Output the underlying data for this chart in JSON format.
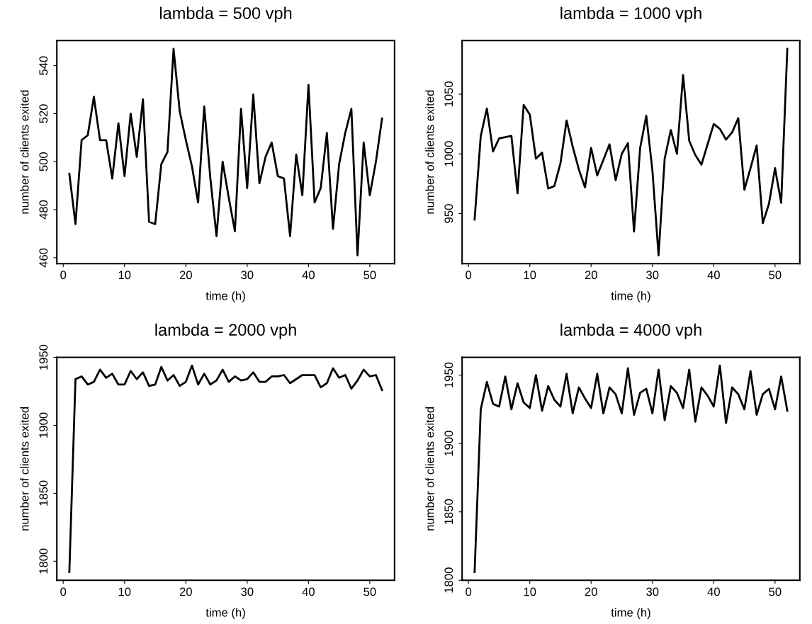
{
  "chart_data": [
    {
      "type": "line",
      "title": "lambda = 500 vph",
      "xlabel": "time (h)",
      "ylabel": "number of clients exited",
      "x": [
        1,
        2,
        3,
        4,
        5,
        6,
        7,
        8,
        9,
        10,
        11,
        12,
        13,
        14,
        15,
        16,
        17,
        18,
        19,
        20,
        21,
        22,
        23,
        24,
        25,
        26,
        27,
        28,
        29,
        30,
        31,
        32,
        33,
        34,
        35,
        36,
        37,
        38,
        39,
        40,
        41,
        42,
        43,
        44,
        45,
        46,
        47,
        48,
        49,
        50,
        51,
        52
      ],
      "series": [
        {
          "color": "#000000",
          "values": [
            495,
            474,
            509,
            511,
            527,
            509,
            509,
            493,
            516,
            494,
            520,
            502,
            526,
            475,
            474,
            499,
            504,
            547,
            521,
            509,
            498,
            483,
            523,
            493,
            469,
            500,
            485,
            471,
            522,
            489,
            528,
            491,
            502,
            508,
            494,
            493,
            469,
            503,
            486,
            532,
            483,
            489,
            512,
            472,
            499,
            512,
            522,
            461,
            508,
            486,
            500,
            518
          ]
        }
      ],
      "xlim": [
        -1.04,
        54.04
      ],
      "xticks": [
        0,
        10,
        20,
        30,
        40,
        50
      ],
      "ylim": [
        457.56,
        550.44
      ],
      "yticks": [
        460,
        480,
        500,
        520,
        540
      ]
    },
    {
      "type": "line",
      "title": "lambda = 1000 vph",
      "xlabel": "time (h)",
      "ylabel": "number of clients exited",
      "x": [
        1,
        2,
        3,
        4,
        5,
        6,
        7,
        8,
        9,
        10,
        11,
        12,
        13,
        14,
        15,
        16,
        17,
        18,
        19,
        20,
        21,
        22,
        23,
        24,
        25,
        26,
        27,
        28,
        29,
        30,
        31,
        32,
        33,
        34,
        35,
        36,
        37,
        38,
        39,
        40,
        41,
        42,
        43,
        44,
        45,
        46,
        47,
        48,
        49,
        50,
        51,
        52
      ],
      "series": [
        {
          "color": "#000000",
          "values": [
            945,
            1015,
            1038,
            1002,
            1013,
            1014,
            1015,
            967,
            1041,
            1033,
            996,
            1001,
            971,
            973,
            992,
            1028,
            1006,
            987,
            972,
            1005,
            982,
            995,
            1008,
            978,
            1000,
            1009,
            935,
            1005,
            1032,
            986,
            915,
            996,
            1020,
            1000,
            1066,
            1011,
            999,
            991,
            1008,
            1025,
            1021,
            1012,
            1018,
            1030,
            970,
            988,
            1007,
            942,
            958,
            988,
            959,
            1088
          ]
        }
      ],
      "xlim": [
        -1.04,
        54.04
      ],
      "xticks": [
        0,
        10,
        20,
        30,
        40,
        50
      ],
      "ylim": [
        908.08,
        1094.92
      ],
      "yticks": [
        950,
        1000,
        1050
      ]
    },
    {
      "type": "line",
      "title": "lambda = 2000 vph",
      "xlabel": "time (h)",
      "ylabel": "number of clients exited",
      "x": [
        1,
        2,
        3,
        4,
        5,
        6,
        7,
        8,
        9,
        10,
        11,
        12,
        13,
        14,
        15,
        16,
        17,
        18,
        19,
        20,
        21,
        22,
        23,
        24,
        25,
        26,
        27,
        28,
        29,
        30,
        31,
        32,
        33,
        34,
        35,
        36,
        37,
        38,
        39,
        40,
        41,
        42,
        43,
        44,
        45,
        46,
        47,
        48,
        49,
        50,
        51,
        52
      ],
      "series": [
        {
          "color": "#000000",
          "values": [
            1792,
            1934,
            1936,
            1930,
            1932,
            1941,
            1935,
            1938,
            1930,
            1930,
            1940,
            1934,
            1939,
            1929,
            1930,
            1943,
            1933,
            1937,
            1929,
            1932,
            1944,
            1930,
            1938,
            1930,
            1933,
            1941,
            1932,
            1936,
            1933,
            1934,
            1939,
            1932,
            1932,
            1936,
            1936,
            1937,
            1931,
            1934,
            1937,
            1937,
            1937,
            1928,
            1931,
            1942,
            1935,
            1937,
            1927,
            1933,
            1941,
            1936,
            1937,
            1926
          ]
        }
      ],
      "xlim": [
        -1.04,
        54.04
      ],
      "xticks": [
        0,
        10,
        20,
        30,
        40,
        50
      ],
      "ylim": [
        1785.92,
        1950.08
      ],
      "yticks": [
        1800,
        1850,
        1900,
        1950
      ]
    },
    {
      "type": "line",
      "title": "lambda = 4000 vph",
      "xlabel": "time (h)",
      "ylabel": "number of clients exited",
      "x": [
        1,
        2,
        3,
        4,
        5,
        6,
        7,
        8,
        9,
        10,
        11,
        12,
        13,
        14,
        15,
        16,
        17,
        18,
        19,
        20,
        21,
        22,
        23,
        24,
        25,
        26,
        27,
        28,
        29,
        30,
        31,
        32,
        33,
        34,
        35,
        36,
        37,
        38,
        39,
        40,
        41,
        42,
        43,
        44,
        45,
        46,
        47,
        48,
        49,
        50,
        51,
        52
      ],
      "series": [
        {
          "color": "#000000",
          "values": [
            1806,
            1925,
            1945,
            1929,
            1927,
            1949,
            1925,
            1944,
            1930,
            1926,
            1950,
            1924,
            1942,
            1932,
            1927,
            1951,
            1922,
            1941,
            1933,
            1926,
            1951,
            1922,
            1941,
            1936,
            1922,
            1955,
            1921,
            1937,
            1940,
            1922,
            1954,
            1917,
            1942,
            1937,
            1926,
            1954,
            1916,
            1941,
            1935,
            1927,
            1957,
            1915,
            1941,
            1936,
            1925,
            1953,
            1921,
            1936,
            1940,
            1925,
            1949,
            1924
          ]
        }
      ],
      "xlim": [
        -1.04,
        54.04
      ],
      "xticks": [
        0,
        10,
        20,
        30,
        40,
        50
      ],
      "ylim": [
        1799.96,
        1963.04
      ],
      "yticks": [
        1800,
        1850,
        1900,
        1950
      ]
    }
  ]
}
